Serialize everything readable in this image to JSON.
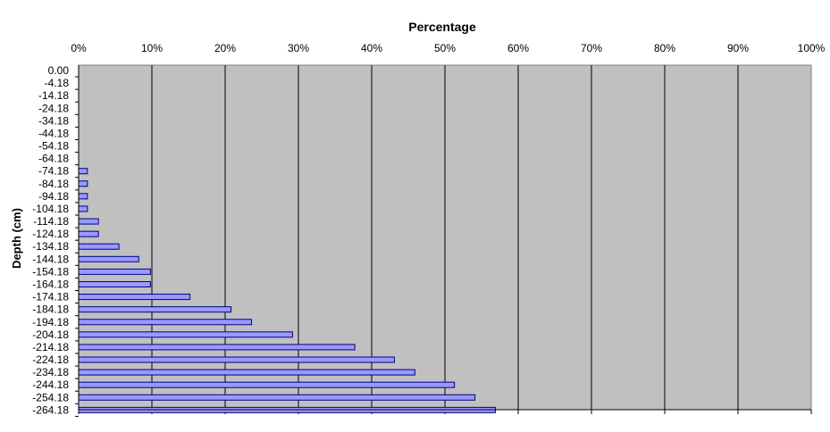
{
  "chart_data": {
    "type": "bar",
    "orientation": "horizontal",
    "title": "Percentage",
    "xlabel": "Percentage",
    "ylabel": "Depth (cm)",
    "xlim": [
      0,
      100
    ],
    "x_ticks": [
      "0%",
      "10%",
      "20%",
      "30%",
      "40%",
      "50%",
      "60%",
      "70%",
      "80%",
      "90%",
      "100%"
    ],
    "grid": "vertical",
    "legend": "none",
    "colors": {
      "plot_background": "#c0c0c0",
      "bar_fill": "#9999ff",
      "bar_stroke": "#000080",
      "gridline": "#000000"
    },
    "categories": [
      "0.00",
      "-4.18",
      "-14.18",
      "-24.18",
      "-34.18",
      "-44.18",
      "-54.18",
      "-64.18",
      "-74.18",
      "-84.18",
      "-94.18",
      "-104.18",
      "-114.18",
      "-124.18",
      "-134.18",
      "-144.18",
      "-154.18",
      "-164.18",
      "-174.18",
      "-184.18",
      "-194.18",
      "-204.18",
      "-214.18",
      "-224.18",
      "-234.18",
      "-244.18",
      "-254.18",
      "-264.18"
    ],
    "values": [
      0,
      0,
      0,
      0,
      0,
      0,
      0,
      0,
      1.2,
      1.2,
      1.2,
      1.2,
      2.7,
      2.7,
      5.5,
      8.2,
      9.8,
      9.8,
      15.2,
      20.8,
      23.6,
      29.2,
      37.7,
      43.1,
      45.9,
      51.3,
      54.1,
      56.9
    ]
  }
}
